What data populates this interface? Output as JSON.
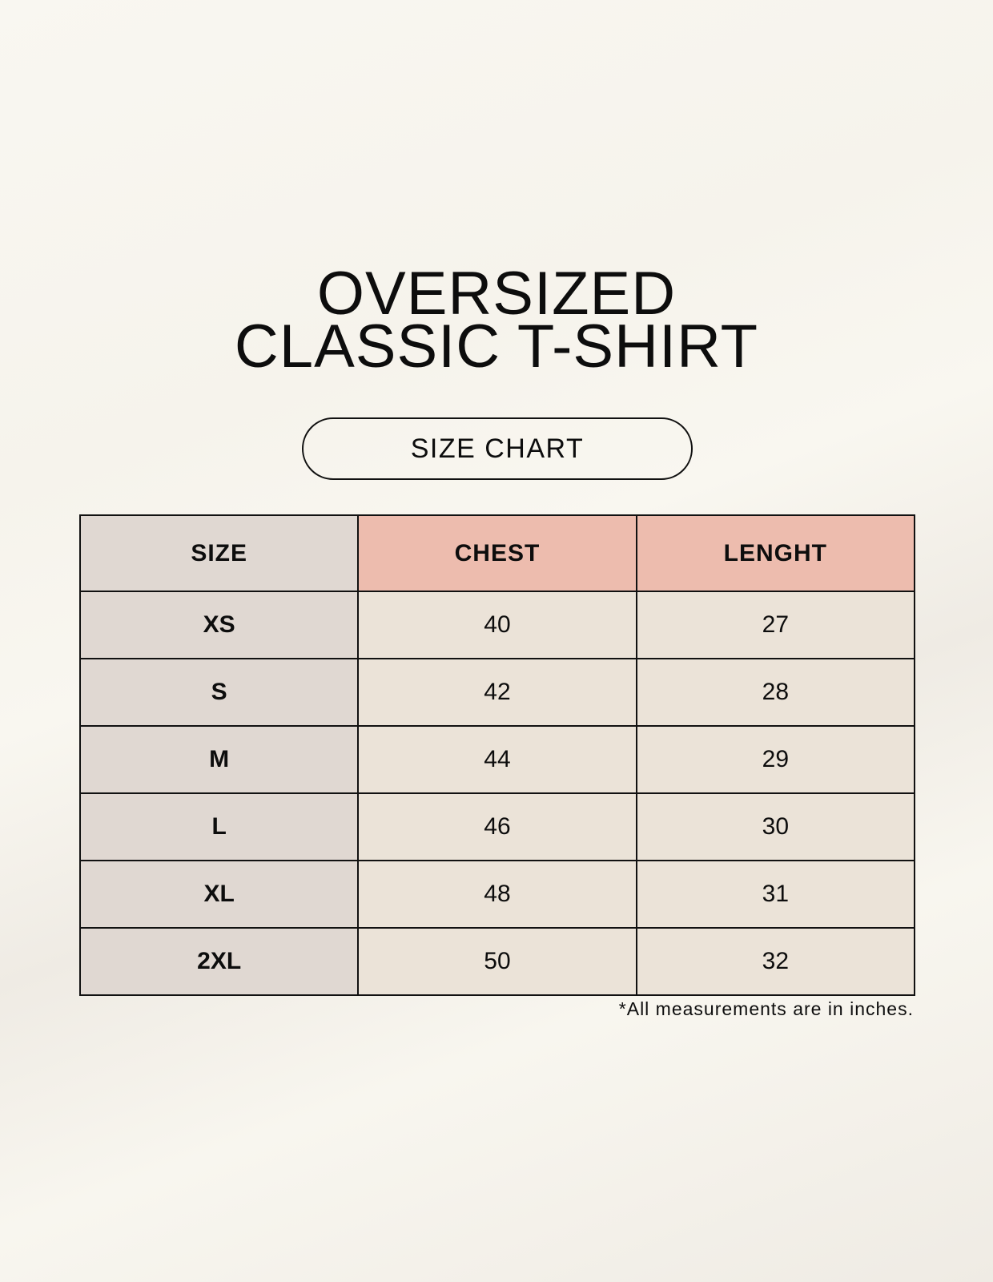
{
  "title_line1": "OVERSIZED",
  "title_line2": "CLASSIC T-SHIRT",
  "badge": "SIZE CHART",
  "table": {
    "headers": [
      "SIZE",
      "CHEST",
      "LENGHT"
    ],
    "rows": [
      [
        "XS",
        "40",
        "27"
      ],
      [
        "S",
        "42",
        "28"
      ],
      [
        "M",
        "44",
        "29"
      ],
      [
        "L",
        "46",
        "30"
      ],
      [
        "XL",
        "48",
        "31"
      ],
      [
        "2XL",
        "50",
        "32"
      ]
    ]
  },
  "footnote": "*All measurements are in inches.",
  "colors": {
    "header_accent": "#edbcae",
    "size_column": "#e0d8d2",
    "value_cells": "#ebe3d8"
  }
}
